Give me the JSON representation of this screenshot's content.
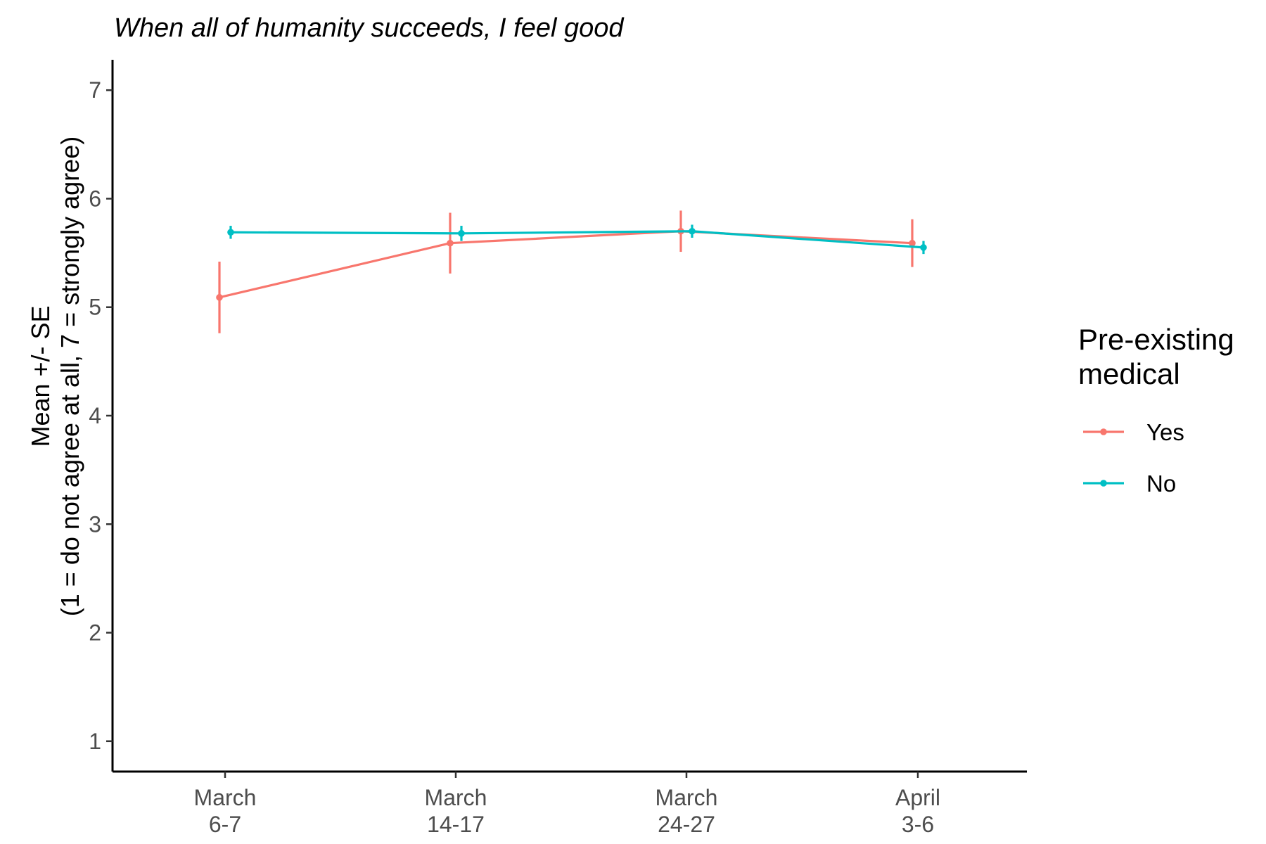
{
  "chart_data": {
    "type": "line",
    "title": "When all of humanity succeeds, I feel good",
    "ylabel_lines": [
      "Mean +/- SE",
      "(1 = do not agree at all, 7 = strongly agree)"
    ],
    "xlabel": "",
    "categories": [
      [
        "March",
        "6-7"
      ],
      [
        "March",
        "14-17"
      ],
      [
        "March",
        "24-27"
      ],
      [
        "April",
        "3-6"
      ]
    ],
    "ylim": [
      0.72,
      7.28
    ],
    "yticks": [
      1,
      2,
      3,
      4,
      5,
      6,
      7
    ],
    "grid": false,
    "legend": {
      "title_lines": [
        "Pre-existing",
        "medical"
      ],
      "placement": "right"
    },
    "series": [
      {
        "name": "Yes",
        "color": "#F8766D",
        "values": [
          5.09,
          5.59,
          5.7,
          5.59
        ],
        "se": [
          0.33,
          0.28,
          0.19,
          0.22
        ]
      },
      {
        "name": "No",
        "color": "#00BFC4",
        "values": [
          5.69,
          5.68,
          5.7,
          5.55
        ],
        "se": [
          0.06,
          0.07,
          0.06,
          0.06
        ]
      }
    ]
  }
}
